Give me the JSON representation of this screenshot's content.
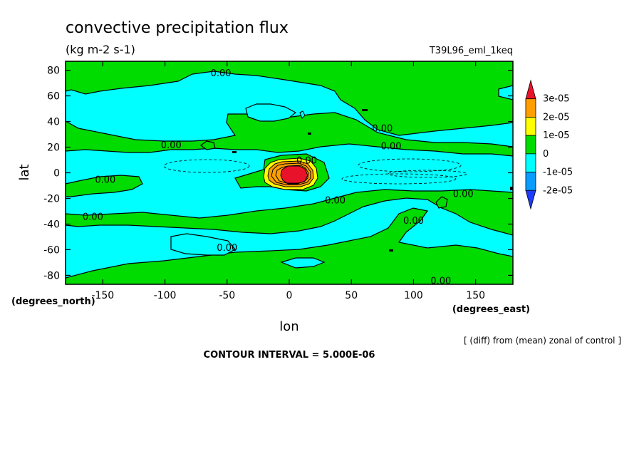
{
  "chart_data": {
    "type": "heatmap",
    "title": "convective precipitation flux",
    "units": "(kg m-2 s-1)",
    "run_label": "T39L96_eml_1keq",
    "xlabel": "lon",
    "ylabel": "lat",
    "x_units": "(degrees_east)",
    "y_units": "(degrees_north)",
    "xlim": [
      -180,
      180
    ],
    "ylim": [
      -87,
      87
    ],
    "x_ticks": [
      -150,
      -100,
      -50,
      0,
      50,
      100,
      150
    ],
    "y_ticks": [
      80,
      60,
      40,
      20,
      0,
      -20,
      -40,
      -60,
      -80
    ],
    "x_tick_labels": [
      "-150",
      "-100",
      "-50",
      "0",
      "50",
      "100",
      "150"
    ],
    "y_tick_labels": [
      "80",
      "60",
      "40",
      "20",
      "0",
      "-20",
      "-40",
      "-60",
      "-80"
    ],
    "colorbar": {
      "levels": [
        "3e-05",
        "2e-05",
        "1e-05",
        "0",
        "-1e-05",
        "-2e-05"
      ],
      "colors": [
        "#e8132b",
        "#ff9f00",
        "#ffff00",
        "#00dc00",
        "#00ffff",
        "#0a9cff",
        "#1e3cff"
      ]
    },
    "contour_labels": [
      {
        "text": "0.00",
        "lon": -55,
        "lat": 78
      },
      {
        "text": "0.00",
        "lon": 75,
        "lat": 35
      },
      {
        "text": "0.00",
        "lon": -95,
        "lat": 22
      },
      {
        "text": "0.00",
        "lon": 82,
        "lat": 21
      },
      {
        "text": "0.00",
        "lon": 14,
        "lat": 10
      },
      {
        "text": "0.00",
        "lon": -148,
        "lat": -5
      },
      {
        "text": "0.00",
        "lon": 140,
        "lat": -16
      },
      {
        "text": "0.00",
        "lon": 37,
        "lat": -21
      },
      {
        "text": "0.00",
        "lon": -158,
        "lat": -34
      },
      {
        "text": "0.00",
        "lon": 100,
        "lat": -37
      },
      {
        "text": "0.00",
        "lon": -50,
        "lat": -58
      },
      {
        "text": "0.00",
        "lon": 122,
        "lat": -84
      }
    ],
    "interval_note": "CONTOUR INTERVAL = 5.000E-06",
    "diff_note": "[ (diff) from (mean) zonal of control ]"
  }
}
